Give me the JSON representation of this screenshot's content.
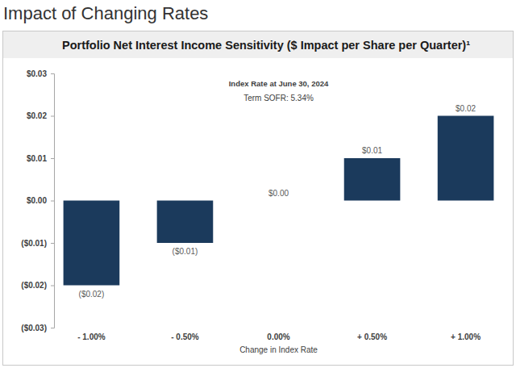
{
  "page": {
    "title": "Impact of Changing Rates"
  },
  "chart_data": {
    "type": "bar",
    "title": "Portfolio Net Interest Income Sensitivity ($ Impact per Share per Quarter)¹",
    "annotations": [
      "Index Rate at June 30, 2024",
      "Term SOFR: 5.34%"
    ],
    "x_label": "Change in Index Rate",
    "categories": [
      "- 1.00%",
      "- 0.50%",
      "0.00%",
      "+ 0.50%",
      "+ 1.00%"
    ],
    "values": [
      -0.02,
      -0.01,
      0,
      0.01,
      0.02
    ],
    "value_labels": [
      "($0.02)",
      "($0.01)",
      "$0.00",
      "$0.01",
      "$0.02"
    ],
    "color": "#1b3a5c",
    "ylim": [
      -0.03,
      0.03
    ],
    "yticks": [
      {
        "value": 0.03,
        "label": "$0.03"
      },
      {
        "value": 0.02,
        "label": "$0.02"
      },
      {
        "value": 0.01,
        "label": "$0.01"
      },
      {
        "value": 0,
        "label": "$0.00"
      },
      {
        "value": -0.01,
        "label": "($0.01)"
      },
      {
        "value": -0.02,
        "label": "($0.02)"
      },
      {
        "value": -0.03,
        "label": "($0.03)"
      }
    ],
    "grid": false,
    "data_labels": true
  }
}
